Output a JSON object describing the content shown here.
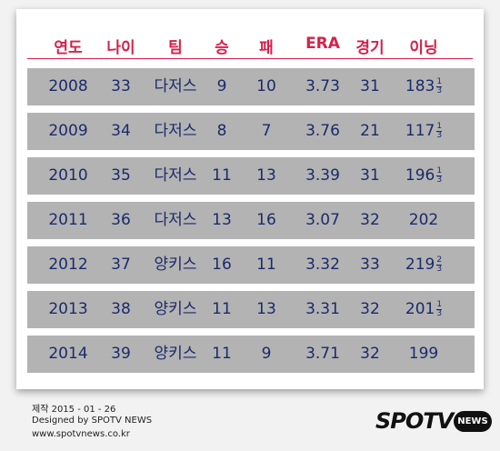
{
  "table": {
    "header": [
      "연도",
      "나이",
      "팀",
      "승",
      "패",
      "ERA",
      "경기",
      "이닝"
    ],
    "rows": [
      [
        "2008",
        "33",
        "다저스",
        "9",
        "10",
        "3.73",
        "31",
        {
          "whole": "183",
          "numerator": "1",
          "denominator": "3"
        }
      ],
      [
        "2009",
        "34",
        "다저스",
        "8",
        "7",
        "3.76",
        "21",
        {
          "whole": "117",
          "numerator": "1",
          "denominator": "3"
        }
      ],
      [
        "2010",
        "35",
        "다저스",
        "11",
        "13",
        "3.39",
        "31",
        {
          "whole": "196",
          "numerator": "1",
          "denominator": "3"
        }
      ],
      [
        "2011",
        "36",
        "다저스",
        "13",
        "16",
        "3.07",
        "32",
        {
          "whole": "202"
        }
      ],
      [
        "2012",
        "37",
        "양키스",
        "16",
        "11",
        "3.32",
        "33",
        {
          "whole": "219",
          "numerator": "2",
          "denominator": "3"
        }
      ],
      [
        "2013",
        "38",
        "양키스",
        "11",
        "13",
        "3.31",
        "32",
        {
          "whole": "201",
          "numerator": "1",
          "denominator": "3"
        }
      ],
      [
        "2014",
        "39",
        "양키스",
        "11",
        "9",
        "3.71",
        "32",
        {
          "whole": "199"
        }
      ]
    ]
  },
  "footer": {
    "date": "제작 2015 - 01 - 26",
    "designer": "Designed by SPOTV NEWS",
    "url": "www.spotvnews.co.kr"
  },
  "logo": {
    "brand": "SPOTV",
    "badge": "NEWS"
  }
}
